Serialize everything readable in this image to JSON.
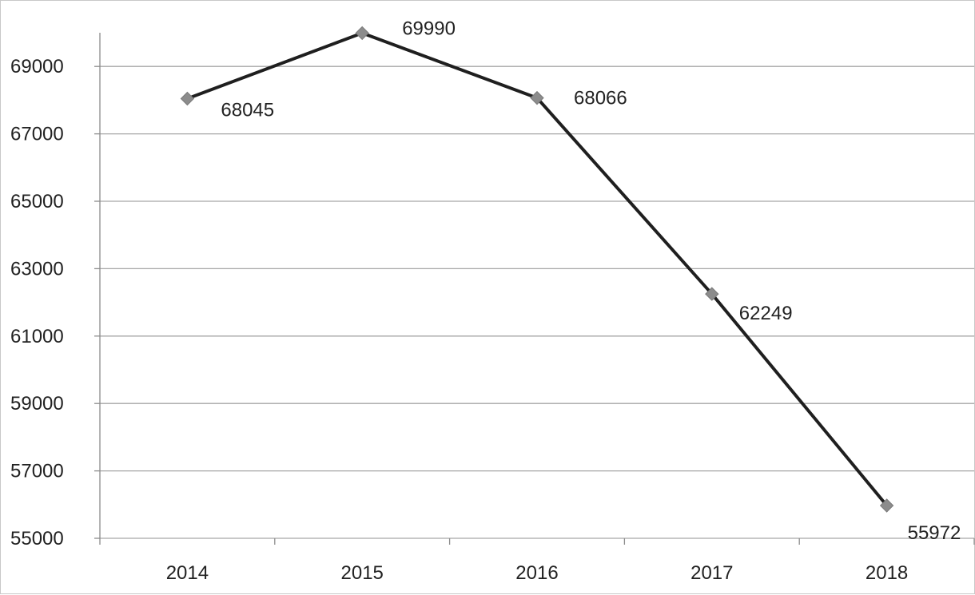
{
  "chart_data": {
    "type": "line",
    "title": "",
    "xlabel": "",
    "ylabel": "",
    "categories": [
      "2014",
      "2015",
      "2016",
      "2017",
      "2018"
    ],
    "series": [
      {
        "values": [
          68045,
          69990,
          68066,
          62249,
          55972
        ]
      }
    ],
    "data_labels": [
      "68045",
      "69990",
      "68066",
      "62249",
      "55972"
    ],
    "ylim": [
      55000,
      70000
    ],
    "yticks": [
      55000,
      57000,
      59000,
      61000,
      63000,
      65000,
      67000,
      69000
    ],
    "ytick_labels": [
      "55000",
      "57000",
      "59000",
      "61000",
      "63000",
      "65000",
      "67000",
      "69000"
    ],
    "grid": true,
    "legend": "none",
    "colors": {
      "line": "#1f1f1f",
      "marker": "#8c8c8c",
      "grid": "#a6a6a6",
      "axis": "#8c8c8c"
    }
  }
}
